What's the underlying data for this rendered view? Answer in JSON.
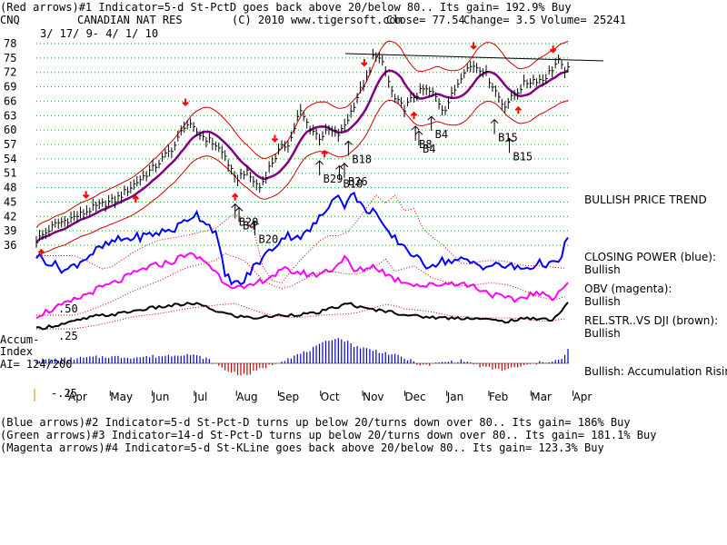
{
  "header": {
    "line1": "(Red arrows)#1 Indicator=5-d St-PctD goes back above 20/below 80.. Its gain= 192.9% Buy",
    "ticker": "CNQ",
    "company": "CANADIAN NAT RES",
    "copyright": "(C) 2010 www.tigersoft.com",
    "close": "Close=  77.54",
    "change": "Change= 3.5",
    "volume": "Volume= 25241",
    "date_range": "3/ 17/ 9- 4/ 1/ 10"
  },
  "footer": {
    "line_blue": "(Blue arrows)#2 Indicator=5-d St-Pct-D turns up below 20/turns down over 80.. Its gain= 186% Buy",
    "line_green": "(Green arrows)#3 Indicator=14-d St-Pct-D turns up below 20/turns down over 80.. Its gain= 181.1% Buy",
    "line_magenta": "(Magenta arrows)#4 Indicator=5-d St-KLine goes back above 20/below 80.. Its gain= 123.3% Buy"
  },
  "panel_labels": {
    "trend": "BULLISH PRICE TREND",
    "cp_title": "CLOSING POWER (blue):",
    "cp_value": "Bullish",
    "obv_title": "OBV (magenta):",
    "obv_value": "Bullish",
    "rs_title": "REL.STR..VS DJI (brown):",
    "rs_value": "Bullish",
    "accum_value": "Bullish: Accumulation Rising",
    "accum_label_1": "Accum-",
    "accum_label_2": "Index",
    "ai_value": "AI= 124/200",
    "ai_scale_top": ".50",
    "ai_scale_mid": ".25",
    "ai_scale_bottom": "-.25"
  },
  "colors": {
    "price_bars": "#000000",
    "bands": "#cc0000",
    "moving_avg": "#800080",
    "closing_power": "#0000ff",
    "obv": "#ff00ff",
    "rel_strength": "#000000",
    "accum_positive": "#0000cc",
    "accum_negative": "#cc0000",
    "grid": "#00aa00",
    "sell_arrows": "#ff0000"
  },
  "chart_data": {
    "type": "line",
    "title": "CANADIAN NAT RES",
    "y_ticks": [
      36,
      39,
      42,
      45,
      48,
      51,
      54,
      57,
      60,
      63,
      66,
      69,
      72,
      75,
      78
    ],
    "ylim": [
      36,
      78
    ],
    "x_ticks": [
      "Apr",
      "May",
      "Jun",
      "Jul",
      "Aug",
      "Sep",
      "Oct",
      "Nov",
      "Dec",
      "Jan",
      "Feb",
      "Mar",
      "Apr"
    ],
    "grid": true,
    "legend": "none",
    "price_close": [
      [
        0,
        37.0
      ],
      [
        4,
        40.5
      ],
      [
        8,
        42.0
      ],
      [
        12,
        44.0
      ],
      [
        16,
        45.5
      ],
      [
        20,
        49.0
      ],
      [
        24,
        52.5
      ],
      [
        28,
        57.0
      ],
      [
        30,
        61.5
      ],
      [
        33,
        59.0
      ],
      [
        36,
        57.0
      ],
      [
        38,
        54.5
      ],
      [
        40,
        49.5
      ],
      [
        42,
        51.5
      ],
      [
        44,
        49.0
      ],
      [
        45,
        48.0
      ],
      [
        47,
        52.5
      ],
      [
        49,
        56.0
      ],
      [
        51,
        57.5
      ],
      [
        53,
        64.0
      ],
      [
        55,
        60.5
      ],
      [
        57,
        58.5
      ],
      [
        59,
        60.0
      ],
      [
        61,
        59.0
      ],
      [
        63,
        63.0
      ],
      [
        65,
        68.0
      ],
      [
        67,
        71.5
      ],
      [
        68,
        76.5
      ],
      [
        70,
        73.0
      ],
      [
        72,
        66.5
      ],
      [
        74,
        64.5
      ],
      [
        76,
        67.0
      ],
      [
        78,
        68.5
      ],
      [
        80,
        67.5
      ],
      [
        82,
        64.0
      ],
      [
        84,
        68.0
      ],
      [
        86,
        72.5
      ],
      [
        88,
        73.5
      ],
      [
        90,
        72.5
      ],
      [
        92,
        69.0
      ],
      [
        94,
        65.0
      ],
      [
        96,
        67.0
      ],
      [
        98,
        69.5
      ],
      [
        100,
        70.5
      ],
      [
        102,
        70.5
      ],
      [
        104,
        73.0
      ],
      [
        105,
        74.5
      ],
      [
        106,
        72.5
      ],
      [
        107,
        72.5
      ]
    ],
    "price_annotations": [
      {
        "label": "B20",
        "x": 40
      },
      {
        "label": "B4",
        "x": 40.8
      },
      {
        "label": "B20",
        "x": 44
      },
      {
        "label": "B29",
        "x": 57
      },
      {
        "label": "B18",
        "x": 61
      },
      {
        "label": "B26",
        "x": 62
      },
      {
        "label": "B18",
        "x": 62.8
      },
      {
        "label": "B8",
        "x": 76.3
      },
      {
        "label": "B4",
        "x": 77
      },
      {
        "label": "B4",
        "x": 79.5
      },
      {
        "label": "B15",
        "x": 92.2
      },
      {
        "label": "B15",
        "x": 95.2
      }
    ],
    "series": [
      {
        "name": "CLOSING POWER (blue)",
        "values": [
          [
            0,
            0.35
          ],
          [
            6,
            0.2
          ],
          [
            12,
            0.4
          ],
          [
            16,
            0.5
          ],
          [
            22,
            0.55
          ],
          [
            28,
            0.62
          ],
          [
            32,
            0.78
          ],
          [
            36,
            0.6
          ],
          [
            38,
            0.15
          ],
          [
            41,
            0.05
          ],
          [
            44,
            0.25
          ],
          [
            46,
            0.35
          ],
          [
            50,
            0.55
          ],
          [
            54,
            0.55
          ],
          [
            58,
            0.78
          ],
          [
            60,
            0.98
          ],
          [
            62,
            0.86
          ],
          [
            64,
            0.97
          ],
          [
            66,
            0.8
          ],
          [
            68,
            0.82
          ],
          [
            70,
            0.6
          ],
          [
            74,
            0.45
          ],
          [
            78,
            0.25
          ],
          [
            82,
            0.3
          ],
          [
            86,
            0.3
          ],
          [
            90,
            0.25
          ],
          [
            94,
            0.25
          ],
          [
            98,
            0.22
          ],
          [
            102,
            0.28
          ],
          [
            105,
            0.25
          ],
          [
            107,
            0.55
          ]
        ]
      },
      {
        "name": "OBV (magenta)",
        "values": [
          [
            0,
            0.1
          ],
          [
            6,
            0.25
          ],
          [
            12,
            0.45
          ],
          [
            16,
            0.55
          ],
          [
            22,
            0.75
          ],
          [
            28,
            0.85
          ],
          [
            30,
            0.95
          ],
          [
            34,
            0.85
          ],
          [
            38,
            0.55
          ],
          [
            42,
            0.45
          ],
          [
            46,
            0.6
          ],
          [
            50,
            0.72
          ],
          [
            56,
            0.65
          ],
          [
            60,
            0.75
          ],
          [
            62,
            0.9
          ],
          [
            64,
            0.7
          ],
          [
            68,
            0.78
          ],
          [
            72,
            0.6
          ],
          [
            78,
            0.5
          ],
          [
            84,
            0.55
          ],
          [
            88,
            0.5
          ],
          [
            92,
            0.38
          ],
          [
            96,
            0.3
          ],
          [
            100,
            0.4
          ],
          [
            104,
            0.35
          ],
          [
            107,
            0.55
          ]
        ]
      },
      {
        "name": "REL.STR..VS DJI (brown)",
        "values": [
          [
            0,
            0.2
          ],
          [
            6,
            0.35
          ],
          [
            12,
            0.55
          ],
          [
            16,
            0.6
          ],
          [
            22,
            0.75
          ],
          [
            28,
            0.85
          ],
          [
            32,
            0.9
          ],
          [
            36,
            0.7
          ],
          [
            40,
            0.55
          ],
          [
            44,
            0.5
          ],
          [
            50,
            0.58
          ],
          [
            56,
            0.62
          ],
          [
            60,
            0.78
          ],
          [
            63,
            0.9
          ],
          [
            66,
            0.75
          ],
          [
            70,
            0.7
          ],
          [
            76,
            0.55
          ],
          [
            82,
            0.5
          ],
          [
            88,
            0.5
          ],
          [
            94,
            0.4
          ],
          [
            100,
            0.5
          ],
          [
            104,
            0.45
          ],
          [
            107,
            0.9
          ]
        ]
      },
      {
        "name": "Accum-Index",
        "values": [
          [
            0,
            0.12
          ],
          [
            8,
            0.18
          ],
          [
            14,
            0.25
          ],
          [
            20,
            0.22
          ],
          [
            26,
            0.28
          ],
          [
            30,
            0.35
          ],
          [
            34,
            0.2
          ],
          [
            38,
            -0.25
          ],
          [
            42,
            -0.45
          ],
          [
            46,
            -0.15
          ],
          [
            50,
            0.15
          ],
          [
            54,
            0.4
          ],
          [
            58,
            0.75
          ],
          [
            60,
            0.95
          ],
          [
            62,
            0.85
          ],
          [
            64,
            0.65
          ],
          [
            66,
            0.55
          ],
          [
            70,
            0.4
          ],
          [
            74,
            0.2
          ],
          [
            78,
            -0.1
          ],
          [
            82,
            0.05
          ],
          [
            86,
            0.1
          ],
          [
            90,
            -0.15
          ],
          [
            94,
            -0.25
          ],
          [
            98,
            -0.1
          ],
          [
            102,
            0.05
          ],
          [
            106,
            0.15
          ],
          [
            107,
            0.5
          ]
        ]
      }
    ]
  }
}
